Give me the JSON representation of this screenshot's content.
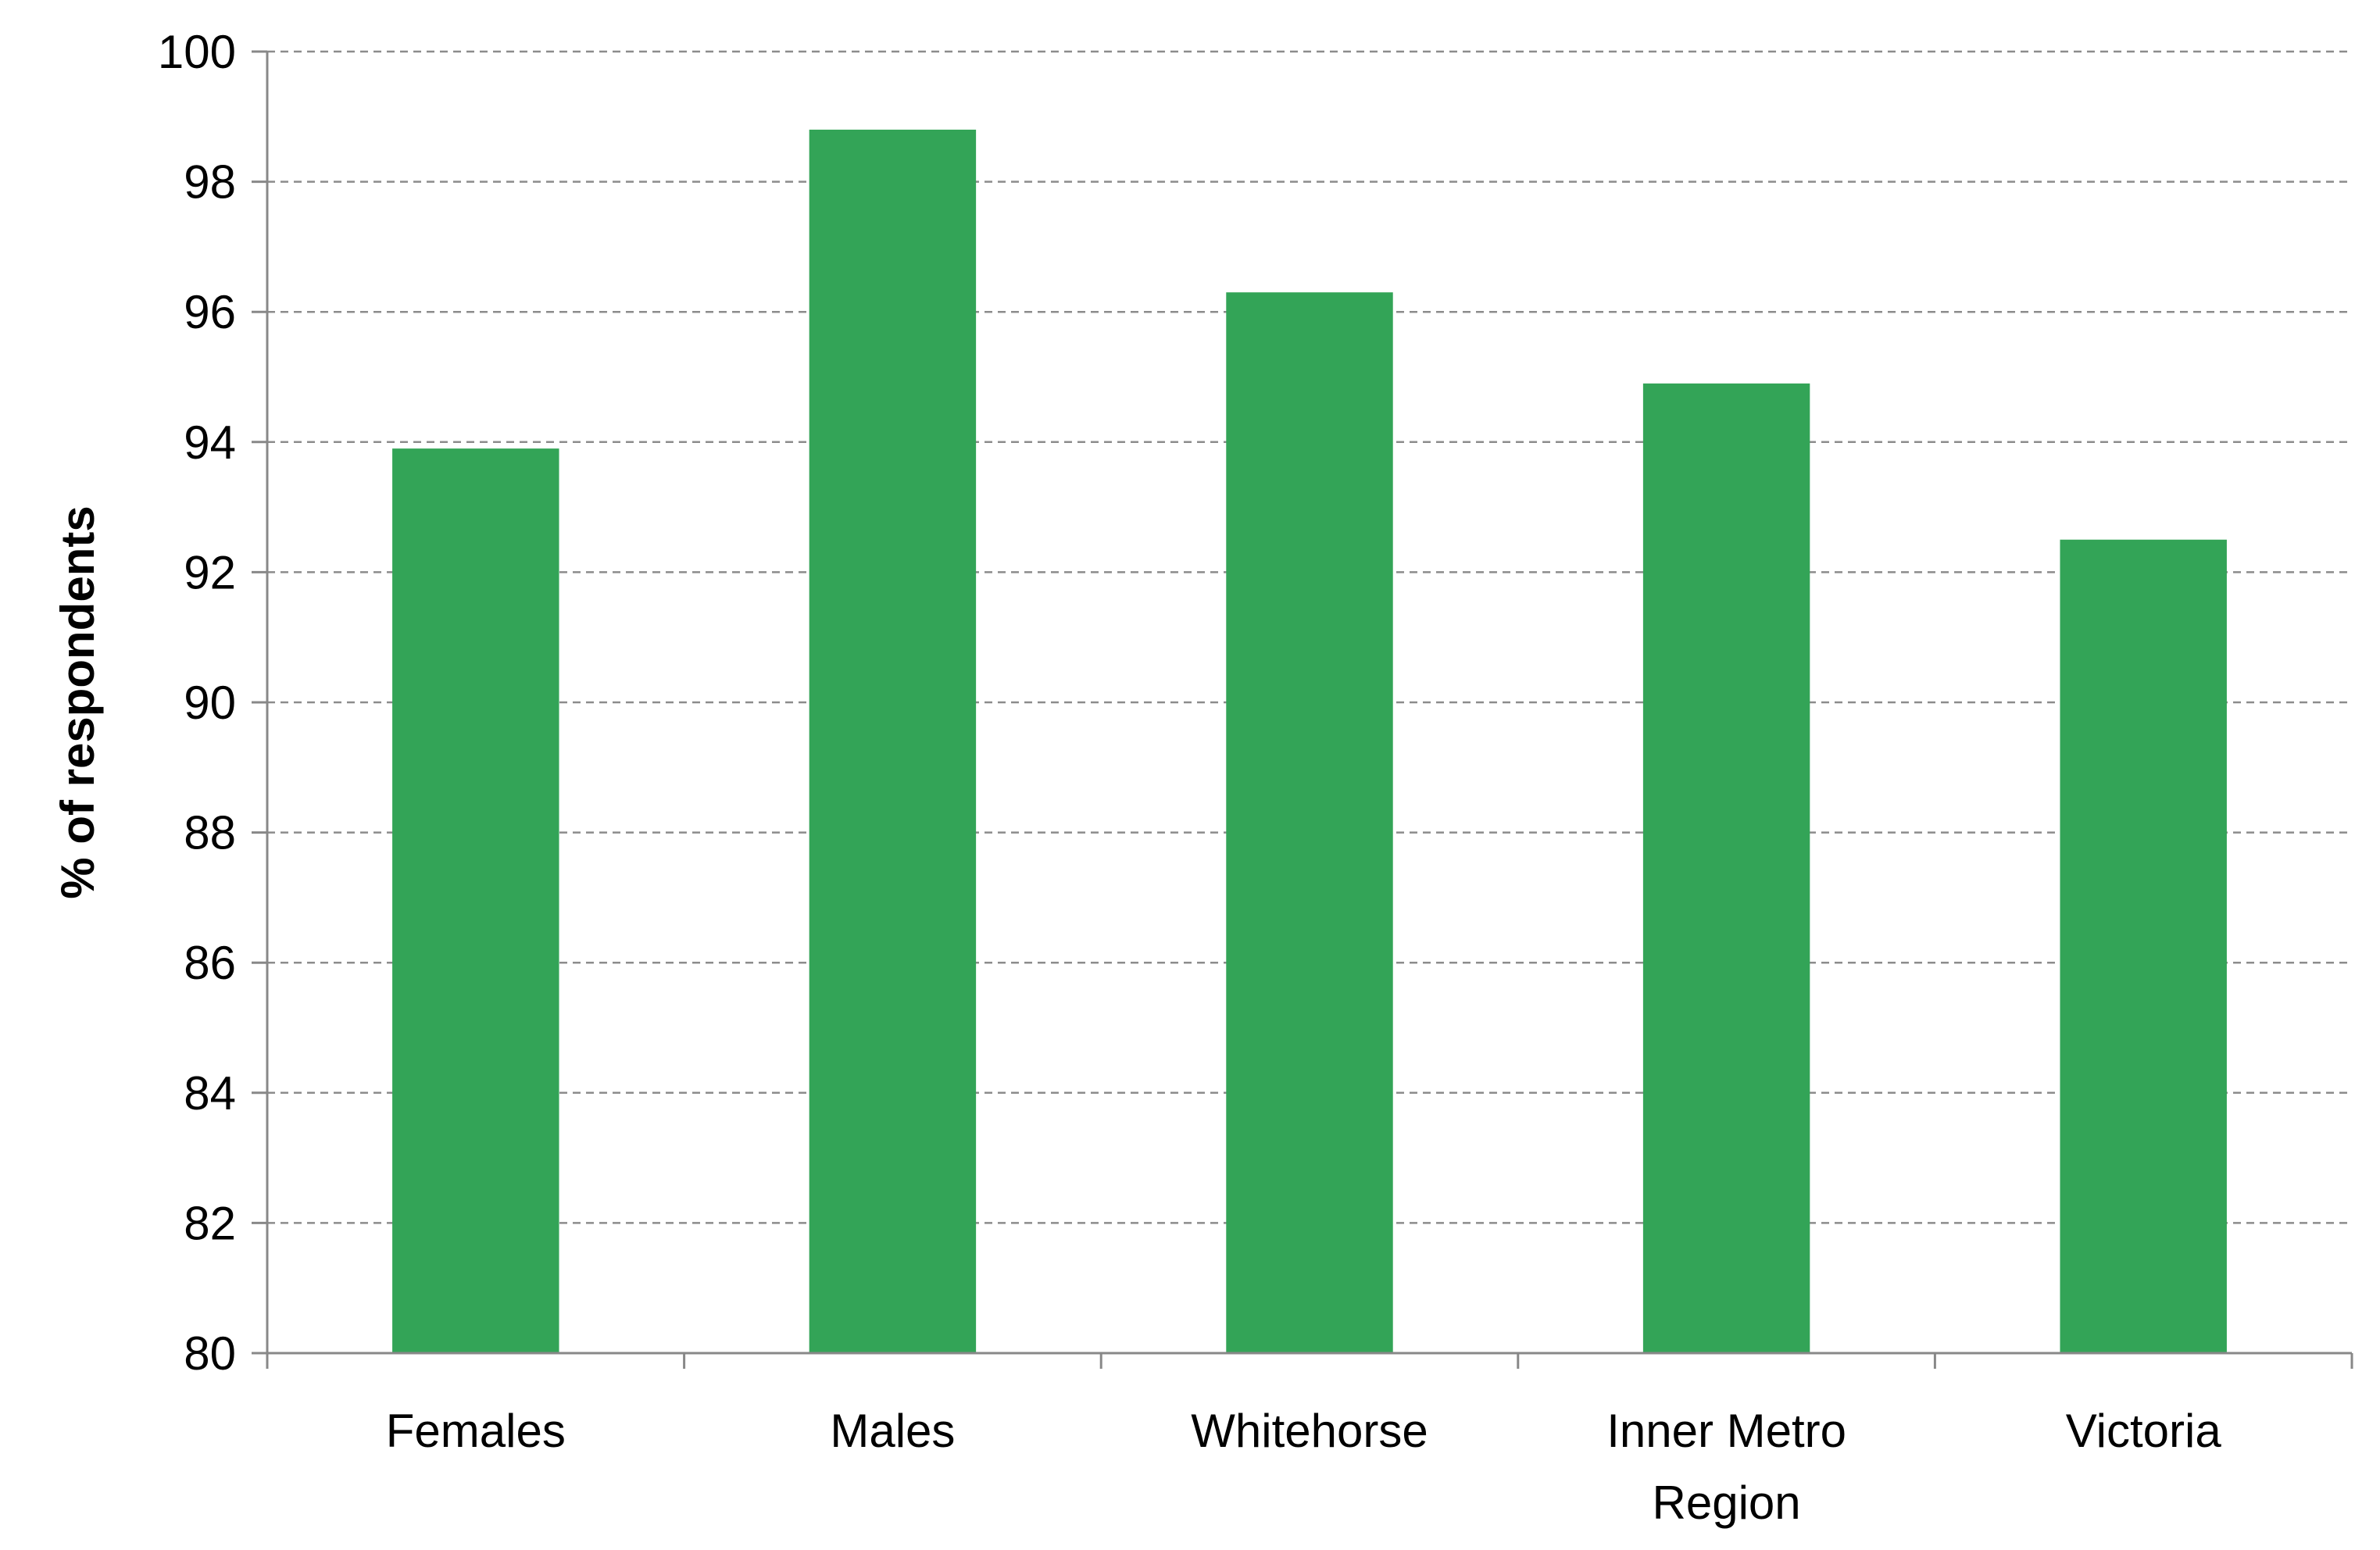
{
  "chart_data": {
    "type": "bar",
    "title": "",
    "xlabel": "",
    "ylabel": "% of respondents",
    "ylim": [
      80,
      100
    ],
    "ytick_step": 2,
    "grid": "horizontal-dashed",
    "legend": "none",
    "categories": [
      [
        "Females"
      ],
      [
        "Males"
      ],
      [
        "Whitehorse"
      ],
      [
        "Inner Metro",
        "Region"
      ],
      [
        "Victoria"
      ]
    ],
    "series": [
      {
        "values": [
          93.9,
          98.8,
          96.3,
          94.9,
          92.5
        ],
        "color": "#33a457"
      }
    ]
  },
  "colors": {
    "bar": "#33a457",
    "axis": "#888888",
    "grid": "#8c8c8c",
    "text": "#000000"
  }
}
